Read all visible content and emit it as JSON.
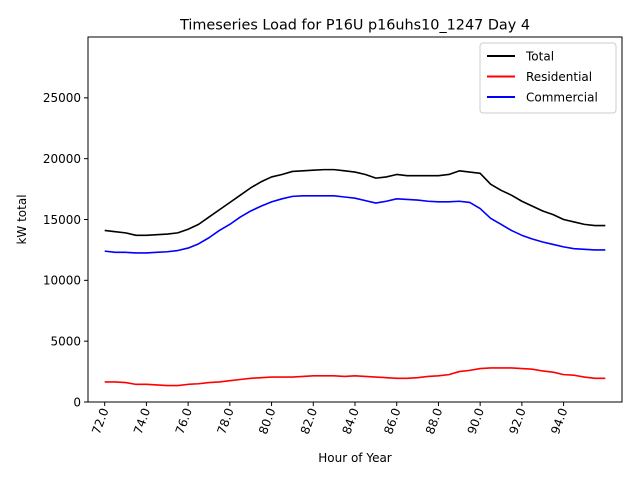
{
  "chart_data": {
    "type": "line",
    "title": "Timeseries Load for P16U p16uhs10_1247  Day 4",
    "xlabel": "Hour of Year",
    "ylabel": "kW total",
    "xlim": [
      71.2,
      96.8
    ],
    "ylim": [
      0,
      30000
    ],
    "x_ticks": [
      72,
      74,
      76,
      78,
      80,
      82,
      84,
      86,
      88,
      90,
      92,
      94
    ],
    "x_tick_labels": [
      "72.0",
      "74.0",
      "76.0",
      "78.0",
      "80.0",
      "82.0",
      "84.0",
      "86.0",
      "88.0",
      "90.0",
      "92.0",
      "94.0"
    ],
    "y_ticks": [
      0,
      5000,
      10000,
      15000,
      20000,
      25000
    ],
    "y_tick_labels": [
      "0",
      "5000",
      "10000",
      "15000",
      "20000",
      "25000"
    ],
    "legend_position": "top-right",
    "x": [
      72,
      72.5,
      73,
      73.5,
      74,
      74.5,
      75,
      75.5,
      76,
      76.5,
      77,
      77.5,
      78,
      78.5,
      79,
      79.5,
      80,
      80.5,
      81,
      81.5,
      82,
      82.5,
      83,
      83.5,
      84,
      84.5,
      85,
      85.5,
      86,
      86.5,
      87,
      87.5,
      88,
      88.5,
      89,
      89.5,
      90,
      90.5,
      91,
      91.5,
      92,
      92.5,
      93,
      93.5,
      94,
      94.5,
      95,
      95.5,
      96
    ],
    "series": [
      {
        "name": "Total",
        "color": "#000000",
        "values": [
          14100,
          14000,
          13900,
          13700,
          13700,
          13750,
          13800,
          13900,
          14200,
          14600,
          15200,
          15800,
          16400,
          17000,
          17600,
          18100,
          18500,
          18700,
          18950,
          19000,
          19050,
          19100,
          19100,
          19000,
          18900,
          18700,
          18400,
          18500,
          18700,
          18600,
          18600,
          18600,
          18600,
          18700,
          19000,
          18900,
          18800,
          17900,
          17400,
          17000,
          16500,
          16100,
          15700,
          15400,
          15000,
          14800,
          14600,
          14500,
          14500
        ]
      },
      {
        "name": "Residential",
        "color": "#ff0000",
        "values": [
          1650,
          1650,
          1600,
          1450,
          1450,
          1400,
          1350,
          1350,
          1450,
          1500,
          1600,
          1650,
          1750,
          1850,
          1950,
          2000,
          2050,
          2050,
          2050,
          2100,
          2150,
          2150,
          2150,
          2100,
          2150,
          2100,
          2050,
          2000,
          1950,
          1950,
          2000,
          2100,
          2150,
          2250,
          2500,
          2600,
          2750,
          2800,
          2800,
          2800,
          2750,
          2700,
          2550,
          2450,
          2250,
          2200,
          2050,
          1950,
          1950
        ]
      },
      {
        "name": "Commercial",
        "color": "#0000ff",
        "values": [
          12400,
          12300,
          12300,
          12250,
          12250,
          12300,
          12350,
          12450,
          12650,
          13000,
          13500,
          14100,
          14600,
          15200,
          15700,
          16100,
          16450,
          16700,
          16900,
          16950,
          16950,
          16950,
          16950,
          16850,
          16750,
          16550,
          16350,
          16500,
          16700,
          16650,
          16600,
          16500,
          16450,
          16450,
          16500,
          16400,
          15900,
          15100,
          14600,
          14100,
          13700,
          13400,
          13150,
          12950,
          12750,
          12600,
          12550,
          12500,
          12500
        ]
      }
    ]
  }
}
